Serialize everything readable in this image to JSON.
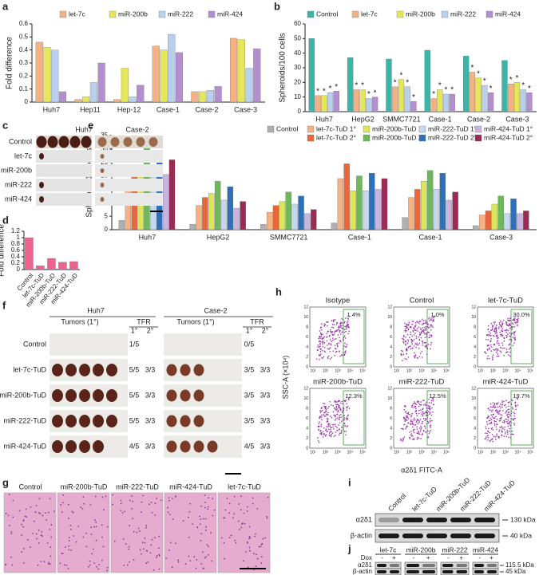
{
  "chart_data": [
    {
      "type": "bar",
      "panel": "a",
      "y_label": "Fold difference",
      "categories": [
        "Huh7",
        "Hep11",
        "Hep-12",
        "Case-1",
        "Case-2",
        "Case-3"
      ],
      "series": [
        {
          "name": "let-7c",
          "color": "#f4b183",
          "values": [
            0.46,
            0.02,
            0.02,
            0.43,
            0.08,
            0.49
          ]
        },
        {
          "name": "miR-200b",
          "color": "#e6e65a",
          "values": [
            0.42,
            0.04,
            0.26,
            0.4,
            0.08,
            0.48
          ]
        },
        {
          "name": "miR-222",
          "color": "#b9d0ec",
          "values": [
            0.4,
            0.15,
            0.04,
            0.52,
            0.09,
            0.26
          ]
        },
        {
          "name": "miR-424",
          "color": "#b48fd0",
          "values": [
            0.08,
            0.3,
            0.13,
            0.38,
            0.12,
            0.41
          ]
        }
      ],
      "ylim": [
        0,
        0.6
      ],
      "yticks": [
        0,
        0.1,
        0.2,
        0.3,
        0.4,
        0.5,
        0.6
      ]
    },
    {
      "type": "bar",
      "panel": "b",
      "y_label": "Spheroids/100 cells",
      "significance_mark": "*",
      "categories": [
        "Huh7",
        "HepG2",
        "SMMC7721",
        "Case-1",
        "Case-2",
        "Case-3"
      ],
      "series": [
        {
          "name": "Control",
          "color": "#3cb4a8",
          "values": [
            50,
            37,
            36,
            42,
            38,
            35
          ]
        },
        {
          "name": "let-7c",
          "color": "#f4b183",
          "values": [
            11,
            15,
            17,
            9,
            27,
            19
          ]
        },
        {
          "name": "miR-200b",
          "color": "#e6e65a",
          "values": [
            11,
            15,
            22,
            15,
            23,
            20
          ]
        },
        {
          "name": "miR-222",
          "color": "#b9d0ec",
          "values": [
            13,
            9,
            17,
            12,
            18,
            15
          ]
        },
        {
          "name": "miR-424",
          "color": "#b48fd0",
          "values": [
            14,
            10,
            7,
            12,
            13,
            13
          ]
        }
      ],
      "ylim": [
        0,
        60
      ],
      "yticks": [
        0,
        10,
        20,
        30,
        40,
        50,
        60
      ]
    },
    {
      "type": "bar",
      "panel": "d",
      "y_label": "Fold difference",
      "color": "#e8668e",
      "categories": [
        "Control",
        "let-7c-TuD",
        "miR-200b-TuD",
        "miR-222-TuD",
        "miR-424-TuD"
      ],
      "values": [
        1.0,
        0.12,
        0.35,
        0.23,
        0.25
      ],
      "ylim": [
        0,
        1.2
      ],
      "yticks": [
        0,
        0.2,
        0.4,
        0.6,
        0.8,
        1,
        1.2
      ]
    },
    {
      "type": "bar",
      "panel": "e",
      "y_label": "Spheroids/100 cells",
      "categories": [
        "Huh7",
        "HepG2",
        "SMMC7721",
        "Case-1",
        "Case-1",
        "Case-3"
      ],
      "series": [
        {
          "name": "Control",
          "color": "#b0b0b0",
          "values": [
            3.5,
            2,
            2,
            2.5,
            4.5,
            1.5
          ]
        },
        {
          "name": "let-7c-TuD 1°",
          "color": "#f4b183",
          "values": [
            15.5,
            9,
            6.5,
            19,
            12,
            5.5
          ]
        },
        {
          "name": "let-7c-TuD 2°",
          "color": "#e8663c",
          "values": [
            20,
            12,
            9,
            24.5,
            15,
            7
          ]
        },
        {
          "name": "miR-200b-TuD 1°",
          "color": "#dde65a",
          "values": [
            24,
            13.5,
            10.5,
            14.5,
            18,
            9.5
          ]
        },
        {
          "name": "miR-200b-TuD 2°",
          "color": "#6cb85a",
          "values": [
            31,
            18,
            14,
            20,
            22,
            12.5
          ]
        },
        {
          "name": "miR-222-TuD 1°",
          "color": "#c5d8ee",
          "values": [
            21,
            11,
            9.5,
            14.5,
            15,
            6
          ]
        },
        {
          "name": "miR-222-TuD 2°",
          "color": "#2f6fb8",
          "values": [
            26.5,
            16,
            12.5,
            21,
            21,
            11.5
          ]
        },
        {
          "name": "miR-424-TuD 1°",
          "color": "#c7b4df",
          "values": [
            20.5,
            8,
            6,
            15,
            11,
            6
          ]
        },
        {
          "name": "miR-424-TuD 2°",
          "color": "#9b2a55",
          "values": [
            26,
            10.5,
            7.5,
            19,
            14,
            7
          ]
        }
      ],
      "ylim": [
        0,
        35
      ],
      "yticks": [
        0,
        5,
        10,
        15,
        20,
        25,
        30,
        35
      ]
    }
  ],
  "panel_labels": [
    "a",
    "b",
    "c",
    "d",
    "e",
    "f",
    "g",
    "h",
    "i",
    "j"
  ],
  "panel_c": {
    "columns": [
      "Huh7",
      "Case-2"
    ],
    "rows": [
      "Control",
      "let-7c",
      "miR-200b",
      "miR-222",
      "miR-424"
    ]
  },
  "panel_f": {
    "groups": [
      "Huh7",
      "Case-2"
    ],
    "tumors_header": "Tumors (1°)",
    "tfr_header": "TFR",
    "tfr_columns": [
      "1°",
      "2°"
    ],
    "rows": [
      {
        "label": "Control",
        "huh7": [
          "1/5"
        ],
        "case2": [
          "0/5"
        ]
      },
      {
        "label": "let-7c-TuD",
        "huh7": [
          "5/5",
          "3/3"
        ],
        "case2": [
          "3/5",
          "3/3"
        ]
      },
      {
        "label": "miR-200b-TuD",
        "huh7": [
          "5/5",
          "3/3"
        ],
        "case2": [
          "3/5",
          "3/3"
        ]
      },
      {
        "label": "miR-222-TuD",
        "huh7": [
          "5/5",
          "3/3"
        ],
        "case2": [
          "3/5",
          "3/3"
        ]
      },
      {
        "label": "miR-424-TuD",
        "huh7": [
          "4/5",
          "3/3"
        ],
        "case2": [
          "4/5",
          "3/3"
        ]
      }
    ]
  },
  "panel_g": {
    "labels": [
      "Control",
      "miR-200b-TuD",
      "miR-222-TuD",
      "miR-424-TuD",
      "let-7c-TuD"
    ]
  },
  "panel_h": {
    "y_label": "SSC-A (×10⁴)",
    "x_label": "α2δ1 FITC-A",
    "yticks": [
      "0",
      "2",
      "4",
      "6",
      "8",
      "10",
      "12"
    ],
    "xticks": [
      "10¹",
      "10²",
      "10³",
      "10⁴",
      "10⁵"
    ],
    "plots": [
      {
        "title": "Isotype",
        "gate": "1.4%"
      },
      {
        "title": "Control",
        "gate": "1.0%"
      },
      {
        "title": "let-7c-TuD",
        "gate": "30.0%"
      },
      {
        "title": "miR-200b-TuD",
        "gate": "12.3%"
      },
      {
        "title": "miR-222-TuD",
        "gate": "12.5%"
      },
      {
        "title": "miR-424-TuD",
        "gate": "19.7%"
      }
    ]
  },
  "panel_i": {
    "lanes": [
      "Control",
      "let-7c-TuD",
      "miR-200b-TuD",
      "miR-222-TuD",
      "miR-424-TuD"
    ],
    "rows": [
      {
        "label": "α2δ1",
        "size": "130 kDa"
      },
      {
        "label": "β-actin",
        "size": "40 kDa"
      }
    ]
  },
  "panel_j": {
    "groups": [
      "let-7c",
      "miR-200b",
      "miR-222",
      "miR-424"
    ],
    "dox_label": "Dox",
    "dox_states": [
      "-",
      "+"
    ],
    "rows": [
      {
        "label": "α2δ1",
        "size": "115.5 kDa"
      },
      {
        "label": "β-actin",
        "size": "45 kDa"
      }
    ]
  }
}
